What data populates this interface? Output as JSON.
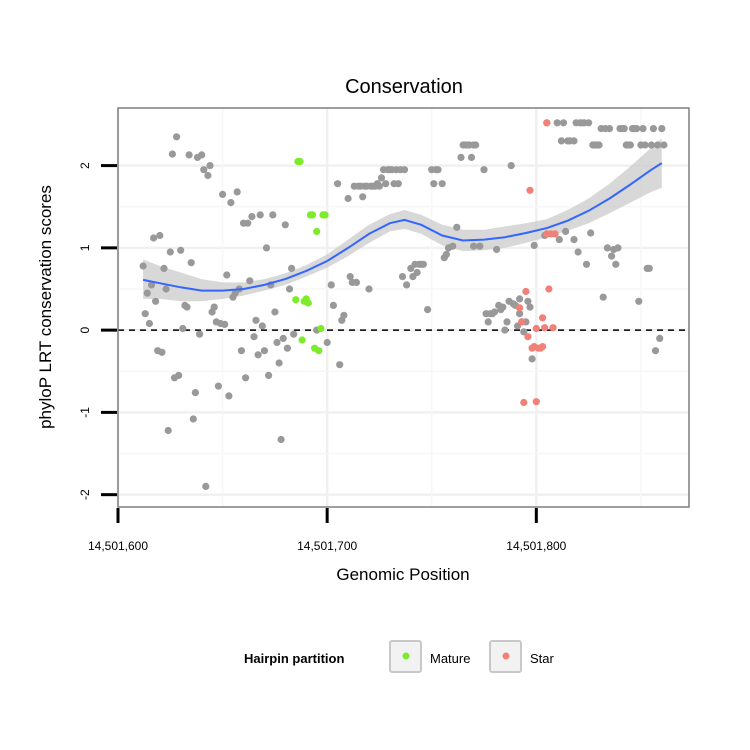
{
  "chart_data": {
    "type": "scatter",
    "title": "Conservation",
    "xlabel": "Genomic Position",
    "ylabel": "phyloP LRT conservation scores",
    "xlim": [
      14501600,
      14501873
    ],
    "ylim": [
      -2.15,
      2.7
    ],
    "x_ticks": [
      14501600,
      14501700,
      14501800
    ],
    "x_tick_labels": [
      "14,501,600",
      "14,501,700",
      "14,501,800"
    ],
    "y_ticks": [
      -2,
      -1,
      0,
      1,
      2
    ],
    "y_tick_labels": [
      "-2",
      "-1",
      "0",
      "1",
      "2"
    ],
    "grid": true,
    "reference_line": {
      "y": 0,
      "style": "dashed"
    },
    "legend": {
      "title": "Hairpin partition",
      "placement": "bottom",
      "entries": [
        {
          "label": "Mature",
          "color": "#7CEB2A"
        },
        {
          "label": "Star",
          "color": "#F08078"
        }
      ]
    },
    "colors": {
      "other": "#999999",
      "smooth": "#3366FF",
      "ribbon": "#C8C8C8"
    },
    "series": [
      {
        "group": "other",
        "points": [
          [
            14501612,
            0.78
          ],
          [
            14501613,
            0.2
          ],
          [
            14501614,
            0.45
          ],
          [
            14501615,
            0.08
          ],
          [
            14501616,
            0.55
          ],
          [
            14501617,
            1.12
          ],
          [
            14501618,
            0.35
          ],
          [
            14501619,
            -0.25
          ],
          [
            14501620,
            1.15
          ],
          [
            14501621,
            -0.27
          ],
          [
            14501622,
            0.75
          ],
          [
            14501623,
            0.5
          ],
          [
            14501624,
            -1.22
          ],
          [
            14501625,
            0.95
          ],
          [
            14501626,
            2.14
          ],
          [
            14501627,
            -0.58
          ],
          [
            14501628,
            2.35
          ],
          [
            14501629,
            -0.55
          ],
          [
            14501630,
            0.97
          ],
          [
            14501631,
            0.02
          ],
          [
            14501632,
            0.3
          ],
          [
            14501633,
            0.28
          ],
          [
            14501634,
            2.13
          ],
          [
            14501635,
            0.82
          ],
          [
            14501636,
            -1.08
          ],
          [
            14501637,
            -0.76
          ],
          [
            14501638,
            2.1
          ],
          [
            14501639,
            -0.05
          ],
          [
            14501640,
            2.13
          ],
          [
            14501641,
            1.95
          ],
          [
            14501642,
            -1.9
          ],
          [
            14501643,
            1.88
          ],
          [
            14501644,
            2.0
          ],
          [
            14501645,
            0.22
          ],
          [
            14501646,
            0.28
          ],
          [
            14501647,
            0.1
          ],
          [
            14501648,
            -0.68
          ],
          [
            14501649,
            0.08
          ],
          [
            14501650,
            1.65
          ],
          [
            14501651,
            0.07
          ],
          [
            14501652,
            0.67
          ],
          [
            14501653,
            -0.8
          ],
          [
            14501654,
            1.55
          ],
          [
            14501655,
            0.4
          ],
          [
            14501656,
            0.45
          ],
          [
            14501657,
            1.68
          ],
          [
            14501658,
            0.5
          ],
          [
            14501659,
            -0.25
          ],
          [
            14501660,
            1.3
          ],
          [
            14501661,
            -0.58
          ],
          [
            14501662,
            1.3
          ],
          [
            14501663,
            0.6
          ],
          [
            14501664,
            1.38
          ],
          [
            14501665,
            -0.08
          ],
          [
            14501666,
            0.12
          ],
          [
            14501667,
            -0.3
          ],
          [
            14501668,
            1.4
          ],
          [
            14501669,
            0.05
          ],
          [
            14501670,
            -0.25
          ],
          [
            14501671,
            1.0
          ],
          [
            14501672,
            -0.55
          ],
          [
            14501673,
            0.55
          ],
          [
            14501674,
            1.4
          ],
          [
            14501675,
            0.22
          ],
          [
            14501676,
            -0.15
          ],
          [
            14501677,
            -0.4
          ],
          [
            14501678,
            -1.33
          ],
          [
            14501679,
            -0.1
          ],
          [
            14501680,
            1.28
          ],
          [
            14501681,
            -0.22
          ],
          [
            14501682,
            0.5
          ],
          [
            14501683,
            0.75
          ],
          [
            14501684,
            -0.05
          ],
          [
            14501695,
            0.0
          ],
          [
            14501700,
            -0.15
          ],
          [
            14501702,
            0.55
          ],
          [
            14501703,
            0.3
          ],
          [
            14501705,
            1.78
          ],
          [
            14501706,
            -0.42
          ],
          [
            14501707,
            0.12
          ],
          [
            14501708,
            0.18
          ],
          [
            14501710,
            1.6
          ],
          [
            14501711,
            0.65
          ],
          [
            14501712,
            0.58
          ],
          [
            14501713,
            1.75
          ],
          [
            14501714,
            0.58
          ],
          [
            14501715,
            1.75
          ],
          [
            14501716,
            1.75
          ],
          [
            14501717,
            1.62
          ],
          [
            14501718,
            1.75
          ],
          [
            14501719,
            1.75
          ],
          [
            14501720,
            0.5
          ],
          [
            14501721,
            1.75
          ],
          [
            14501722,
            1.75
          ],
          [
            14501723,
            1.75
          ],
          [
            14501724,
            1.78
          ],
          [
            14501725,
            1.75
          ],
          [
            14501726,
            1.85
          ],
          [
            14501727,
            1.95
          ],
          [
            14501728,
            1.78
          ],
          [
            14501729,
            1.95
          ],
          [
            14501730,
            1.95
          ],
          [
            14501731,
            1.95
          ],
          [
            14501732,
            1.78
          ],
          [
            14501733,
            1.95
          ],
          [
            14501734,
            1.78
          ],
          [
            14501735,
            1.95
          ],
          [
            14501736,
            0.65
          ],
          [
            14501737,
            1.95
          ],
          [
            14501738,
            0.55
          ],
          [
            14501740,
            0.75
          ],
          [
            14501741,
            0.65
          ],
          [
            14501742,
            0.8
          ],
          [
            14501743,
            0.7
          ],
          [
            14501744,
            0.8
          ],
          [
            14501745,
            0.8
          ],
          [
            14501746,
            0.8
          ],
          [
            14501748,
            0.25
          ],
          [
            14501750,
            1.95
          ],
          [
            14501751,
            1.78
          ],
          [
            14501752,
            1.95
          ],
          [
            14501753,
            1.95
          ],
          [
            14501755,
            1.78
          ],
          [
            14501756,
            0.88
          ],
          [
            14501757,
            0.92
          ],
          [
            14501758,
            1.0
          ],
          [
            14501760,
            1.02
          ],
          [
            14501762,
            1.25
          ],
          [
            14501764,
            2.1
          ],
          [
            14501765,
            2.25
          ],
          [
            14501766,
            2.25
          ],
          [
            14501767,
            2.25
          ],
          [
            14501768,
            2.25
          ],
          [
            14501769,
            2.1
          ],
          [
            14501770,
            2.25
          ],
          [
            14501771,
            2.25
          ],
          [
            14501773,
            1.02
          ],
          [
            14501775,
            1.95
          ],
          [
            14501776,
            0.2
          ],
          [
            14501777,
            0.1
          ],
          [
            14501778,
            0.2
          ],
          [
            14501779,
            0.2
          ],
          [
            14501780,
            0.22
          ],
          [
            14501781,
            0.98
          ],
          [
            14501782,
            0.3
          ],
          [
            14501783,
            0.25
          ],
          [
            14501784,
            0.28
          ],
          [
            14501785,
            0.0
          ],
          [
            14501786,
            0.1
          ],
          [
            14501787,
            0.35
          ],
          [
            14501788,
            2.0
          ],
          [
            14501789,
            0.32
          ],
          [
            14501790,
            0.3
          ],
          [
            14501791,
            0.05
          ],
          [
            14501792,
            0.38
          ],
          [
            14501793,
            0.1
          ],
          [
            14501794,
            -0.02
          ],
          [
            14501795,
            0.1
          ],
          [
            14501796,
            0.35
          ],
          [
            14501797,
            0.28
          ],
          [
            14501798,
            -0.35
          ],
          [
            14501799,
            1.03
          ],
          [
            14501805,
            2.52
          ],
          [
            14501810,
            2.52
          ],
          [
            14501811,
            1.1
          ],
          [
            14501812,
            2.3
          ],
          [
            14501813,
            2.52
          ],
          [
            14501814,
            1.2
          ],
          [
            14501815,
            2.3
          ],
          [
            14501816,
            2.3
          ],
          [
            14501818,
            2.3
          ],
          [
            14501819,
            2.52
          ],
          [
            14501820,
            0.95
          ],
          [
            14501821,
            2.52
          ],
          [
            14501822,
            2.52
          ],
          [
            14501823,
            2.52
          ],
          [
            14501824,
            0.8
          ],
          [
            14501825,
            2.52
          ],
          [
            14501826,
            1.18
          ],
          [
            14501827,
            2.25
          ],
          [
            14501828,
            2.25
          ],
          [
            14501829,
            2.25
          ],
          [
            14501830,
            2.25
          ],
          [
            14501831,
            2.45
          ],
          [
            14501832,
            0.4
          ],
          [
            14501833,
            2.45
          ],
          [
            14501834,
            1.0
          ],
          [
            14501835,
            2.45
          ],
          [
            14501836,
            0.9
          ],
          [
            14501837,
            0.98
          ],
          [
            14501838,
            0.8
          ],
          [
            14501839,
            1.0
          ],
          [
            14501840,
            2.45
          ],
          [
            14501841,
            2.45
          ],
          [
            14501842,
            2.45
          ],
          [
            14501843,
            2.25
          ],
          [
            14501844,
            2.25
          ],
          [
            14501845,
            2.25
          ],
          [
            14501846,
            2.45
          ],
          [
            14501847,
            2.45
          ],
          [
            14501848,
            2.45
          ],
          [
            14501849,
            0.35
          ],
          [
            14501850,
            2.25
          ],
          [
            14501851,
            2.45
          ],
          [
            14501852,
            2.25
          ],
          [
            14501853,
            0.75
          ],
          [
            14501854,
            0.75
          ],
          [
            14501855,
            2.25
          ],
          [
            14501856,
            2.45
          ],
          [
            14501857,
            -0.25
          ],
          [
            14501858,
            2.25
          ],
          [
            14501859,
            -0.1
          ],
          [
            14501860,
            2.45
          ],
          [
            14501861,
            2.25
          ],
          [
            14501770,
            1.02
          ],
          [
            14501818,
            1.1
          ],
          [
            14501804,
            1.15
          ],
          [
            14501792,
            0.2
          ]
        ]
      },
      {
        "group": "Mature",
        "points": [
          [
            14501685,
            0.37
          ],
          [
            14501686,
            2.05
          ],
          [
            14501687,
            2.05
          ],
          [
            14501688,
            -0.12
          ],
          [
            14501689,
            0.35
          ],
          [
            14501690,
            0.38
          ],
          [
            14501691,
            0.33
          ],
          [
            14501692,
            1.4
          ],
          [
            14501693,
            1.4
          ],
          [
            14501694,
            -0.22
          ],
          [
            14501695,
            1.2
          ],
          [
            14501696,
            -0.25
          ],
          [
            14501697,
            0.02
          ],
          [
            14501698,
            1.4
          ],
          [
            14501699,
            1.4
          ]
        ]
      },
      {
        "group": "Star",
        "points": [
          [
            14501792,
            0.27
          ],
          [
            14501793,
            0.1
          ],
          [
            14501794,
            -0.88
          ],
          [
            14501795,
            0.47
          ],
          [
            14501796,
            -0.08
          ],
          [
            14501797,
            1.7
          ],
          [
            14501798,
            -0.22
          ],
          [
            14501799,
            -0.2
          ],
          [
            14501800,
            -0.87
          ],
          [
            14501801,
            -0.22
          ],
          [
            14501802,
            -0.22
          ],
          [
            14501803,
            -0.2
          ],
          [
            14501804,
            0.03
          ],
          [
            14501805,
            1.17
          ],
          [
            14501806,
            0.5
          ],
          [
            14501807,
            1.17
          ],
          [
            14501808,
            0.03
          ],
          [
            14501809,
            1.17
          ],
          [
            14501800,
            0.02
          ],
          [
            14501803,
            0.15
          ],
          [
            14501805,
            2.52
          ]
        ]
      }
    ],
    "smooth_curve": {
      "x": [
        14501612,
        14501620,
        14501630,
        14501640,
        14501650,
        14501660,
        14501670,
        14501680,
        14501690,
        14501700,
        14501710,
        14501720,
        14501730,
        14501737,
        14501745,
        14501755,
        14501765,
        14501775,
        14501785,
        14501795,
        14501805,
        14501815,
        14501825,
        14501835,
        14501845,
        14501855,
        14501860
      ],
      "y": [
        0.61,
        0.57,
        0.52,
        0.48,
        0.48,
        0.5,
        0.55,
        0.62,
        0.72,
        0.84,
        1.0,
        1.17,
        1.3,
        1.34,
        1.28,
        1.15,
        1.09,
        1.1,
        1.13,
        1.18,
        1.24,
        1.33,
        1.45,
        1.6,
        1.77,
        1.95,
        2.03
      ],
      "lower": [
        0.38,
        0.38,
        0.35,
        0.35,
        0.38,
        0.42,
        0.48,
        0.55,
        0.65,
        0.76,
        0.9,
        1.06,
        1.2,
        1.23,
        1.17,
        1.03,
        0.96,
        0.97,
        1.0,
        1.06,
        1.13,
        1.21,
        1.3,
        1.42,
        1.55,
        1.68,
        1.73
      ],
      "upper": [
        0.86,
        0.78,
        0.7,
        0.62,
        0.58,
        0.58,
        0.62,
        0.69,
        0.79,
        0.92,
        1.1,
        1.28,
        1.41,
        1.46,
        1.4,
        1.28,
        1.22,
        1.22,
        1.26,
        1.3,
        1.35,
        1.46,
        1.6,
        1.78,
        1.99,
        2.22,
        2.33
      ]
    }
  }
}
